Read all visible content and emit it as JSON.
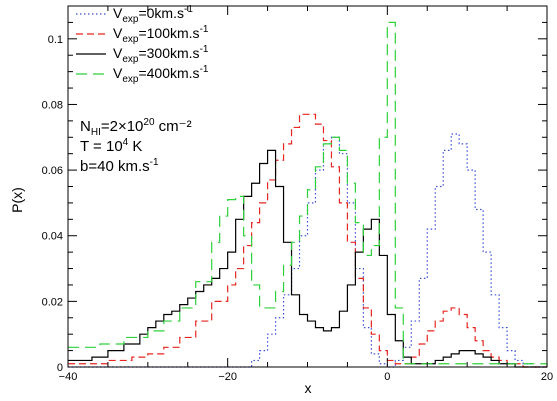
{
  "chart_data": {
    "type": "line",
    "step": true,
    "xlabel": "x",
    "ylabel": "P(x)",
    "xlim": [
      -40,
      20
    ],
    "ylim": [
      0,
      0.11
    ],
    "xticks": [
      -40,
      -20,
      0,
      20
    ],
    "yticks": [
      0,
      0.02,
      0.04,
      0.06,
      0.08,
      0.1
    ],
    "xtick_labels": [
      "−40",
      "−20",
      "0",
      "20"
    ],
    "ytick_labels": [
      "0",
      "0.02",
      "0.04",
      "0.06",
      "0.08",
      "0.1"
    ],
    "legend_placement": "top-left",
    "annotations": [
      {
        "id": "nhi",
        "base": "N",
        "sub": "HI",
        "rest": "=2×10",
        "sup": "20",
        "tail": " cm⁻²"
      },
      {
        "id": "temp",
        "base": "T = 10",
        "sup": "4",
        "tail": " K"
      },
      {
        "id": "bpar",
        "base": "b=40 km.s",
        "sup": "-1",
        "tail": ""
      }
    ],
    "series": [
      {
        "name": "Vexp=0km.s-1",
        "legend_base": "V",
        "legend_sub": "exp",
        "legend_rest": "=0km.s",
        "legend_sup": "-1",
        "color": "#3a4fd6",
        "dash": "1.5,2.5",
        "x": [
          -40,
          -18,
          -17,
          -16,
          -15,
          -14,
          -13,
          -12,
          -11,
          -10,
          -9,
          -8,
          -7,
          -6,
          -5,
          -4,
          -3,
          -2,
          -1,
          0,
          1,
          2,
          3,
          4,
          5,
          6,
          7,
          8,
          9,
          10,
          11,
          12,
          13,
          14,
          15,
          16,
          17,
          18,
          19,
          20
        ],
        "y": [
          0,
          0,
          0.002,
          0.005,
          0.01,
          0.015,
          0.022,
          0.03,
          0.04,
          0.05,
          0.06,
          0.068,
          0.07,
          0.065,
          0.05,
          0.03,
          0.012,
          0.004,
          0.001,
          0,
          0.002,
          0.006,
          0.014,
          0.027,
          0.042,
          0.055,
          0.066,
          0.071,
          0.068,
          0.06,
          0.048,
          0.035,
          0.022,
          0.012,
          0.005,
          0.002,
          0.001,
          0,
          0,
          0
        ]
      },
      {
        "name": "Vexp=100km.s-1",
        "legend_base": "V",
        "legend_sub": "exp",
        "legend_rest": "=100km.s",
        "legend_sup": "-1",
        "color": "#e8251f",
        "dash": "7,4",
        "x": [
          -40,
          -35,
          -32,
          -30,
          -28,
          -26,
          -24,
          -22,
          -20,
          -19,
          -18,
          -17,
          -16,
          -15,
          -14,
          -13,
          -12,
          -11,
          -10,
          -9,
          -8,
          -7,
          -6,
          -5,
          -4,
          -3,
          -2,
          -1,
          0,
          1,
          2,
          3,
          4,
          5,
          6,
          7,
          8,
          9,
          10,
          11,
          12,
          13,
          14,
          15,
          16,
          17,
          20
        ],
        "y": [
          0.001,
          0.002,
          0.003,
          0.004,
          0.006,
          0.009,
          0.014,
          0.02,
          0.025,
          0.03,
          0.037,
          0.044,
          0.05,
          0.057,
          0.063,
          0.068,
          0.073,
          0.077,
          0.077,
          0.074,
          0.069,
          0.061,
          0.05,
          0.038,
          0.027,
          0.018,
          0.01,
          0.005,
          0.002,
          0.001,
          0.001,
          0.003,
          0.007,
          0.011,
          0.014,
          0.017,
          0.018,
          0.016,
          0.012,
          0.008,
          0.005,
          0.003,
          0.002,
          0.001,
          0.001,
          0,
          0
        ]
      },
      {
        "name": "Vexp=300km.s-1",
        "legend_base": "V",
        "legend_sub": "exp",
        "legend_rest": "=300km.s",
        "legend_sup": "-1",
        "color": "#000000",
        "dash": "",
        "x": [
          -40,
          -37,
          -35,
          -33,
          -31,
          -30,
          -29,
          -28,
          -27,
          -26,
          -25,
          -24,
          -23,
          -22,
          -21,
          -20,
          -19,
          -18,
          -17,
          -16,
          -15,
          -14,
          -13,
          -12,
          -11,
          -10,
          -9,
          -8,
          -7,
          -6,
          -5,
          -4,
          -3,
          -2,
          -1,
          0,
          1,
          2,
          3,
          4,
          5,
          6,
          7,
          8,
          9,
          10,
          11,
          12,
          13,
          14,
          15,
          16,
          17,
          18,
          19,
          20
        ],
        "y": [
          0.002,
          0.003,
          0.005,
          0.007,
          0.01,
          0.012,
          0.014,
          0.016,
          0.017,
          0.019,
          0.021,
          0.023,
          0.025,
          0.027,
          0.03,
          0.035,
          0.045,
          0.052,
          0.056,
          0.062,
          0.066,
          0.055,
          0.038,
          0.022,
          0.016,
          0.014,
          0.012,
          0.011,
          0.012,
          0.017,
          0.025,
          0.035,
          0.042,
          0.045,
          0.034,
          0.016,
          0.008,
          0.003,
          0.001,
          0.001,
          0.001,
          0.002,
          0.003,
          0.004,
          0.005,
          0.005,
          0.004,
          0.003,
          0.002,
          0.001,
          0.001,
          0,
          0,
          0,
          0,
          0
        ]
      },
      {
        "name": "Vexp=400km.s-1",
        "legend_base": "V",
        "legend_sub": "exp",
        "legend_rest": "=400km.s",
        "legend_sup": "-1",
        "color": "#2fd13a",
        "dash": "11,6",
        "x": [
          -40,
          -36,
          -33,
          -30,
          -28,
          -26,
          -24,
          -22,
          -21,
          -20,
          -19,
          -18,
          -17,
          -16,
          -15,
          -14,
          -13,
          -12,
          -11,
          -10,
          -9,
          -8,
          -7,
          -6,
          -5,
          -4,
          -3,
          -2,
          -1,
          0,
          1,
          2,
          20
        ],
        "y": [
          0.006,
          0.007,
          0.009,
          0.011,
          0.014,
          0.018,
          0.026,
          0.038,
          0.046,
          0.051,
          0.052,
          0.04,
          0.025,
          0.018,
          0.018,
          0.023,
          0.031,
          0.038,
          0.046,
          0.054,
          0.061,
          0.068,
          0.07,
          0.066,
          0.056,
          0.044,
          0.034,
          0.037,
          0.07,
          0.105,
          0.018,
          0.001,
          0
        ]
      }
    ]
  }
}
